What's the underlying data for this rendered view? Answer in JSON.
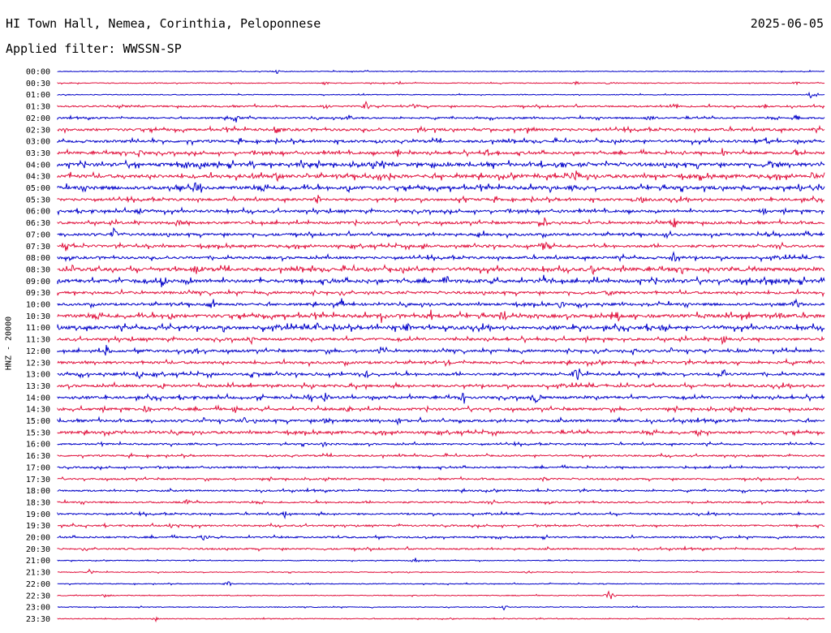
{
  "header": {
    "title": "HI Town Hall, Nemea, Corinthia, Peloponnese",
    "date": "2025-06-05",
    "filter": "Applied filter: WWSSN-SP"
  },
  "chart_data": {
    "type": "line",
    "ylabel": "HNZ - 20000",
    "xlabel": "",
    "rows": [
      "00:00",
      "00:30",
      "01:00",
      "01:30",
      "02:00",
      "02:30",
      "03:00",
      "03:30",
      "04:00",
      "04:30",
      "05:00",
      "05:30",
      "06:00",
      "06:30",
      "07:00",
      "07:30",
      "08:00",
      "08:30",
      "09:00",
      "09:30",
      "10:00",
      "10:30",
      "11:00",
      "11:30",
      "12:00",
      "12:30",
      "13:00",
      "13:30",
      "14:00",
      "14:30",
      "15:00",
      "15:30",
      "16:00",
      "16:30",
      "17:00",
      "17:30",
      "18:00",
      "18:30",
      "19:00",
      "19:30",
      "20:00",
      "20:30",
      "21:00",
      "21:30",
      "22:00",
      "22:30",
      "23:00",
      "23:30"
    ],
    "colors": [
      "#0000c8",
      "#e0103c"
    ],
    "noise_level": [
      1,
      1,
      1,
      2,
      2,
      3,
      3,
      3,
      4,
      4,
      4,
      3,
      3,
      3,
      3,
      3,
      3,
      4,
      4,
      3,
      3,
      4,
      4,
      3,
      3,
      3,
      3,
      3,
      3,
      3,
      3,
      3,
      2,
      2,
      2,
      2,
      2,
      2,
      2,
      2,
      2,
      2,
      1,
      1,
      1,
      1,
      1,
      1
    ],
    "events": [
      [
        [
          270,
          0.7
        ]
      ],
      [
        [
          330,
          0.6
        ],
        [
          420,
          0.8
        ],
        [
          640,
          0.7
        ],
        [
          680,
          0.6
        ],
        [
          910,
          0.6
        ]
      ],
      [
        [
          930,
          1.8
        ]
      ],
      [
        [
          330,
          1.2
        ],
        [
          380,
          1.5
        ],
        [
          440,
          1.2
        ],
        [
          760,
          2.0
        ],
        [
          870,
          1.0
        ]
      ],
      [
        [
          220,
          1.5
        ],
        [
          360,
          1.3
        ],
        [
          730,
          1.2
        ],
        [
          910,
          1.4
        ]
      ],
      [
        [
          270,
          1.4
        ],
        [
          450,
          1.0
        ],
        [
          580,
          1.0
        ]
      ],
      [
        [
          870,
          1.1
        ]
      ],
      [
        [
          100,
          1.6
        ],
        [
          420,
          1.3
        ],
        [
          530,
          1.5
        ],
        [
          820,
          1.7
        ],
        [
          910,
          1.3
        ]
      ],
      [
        [
          100,
          1.8
        ],
        [
          300,
          1.6
        ],
        [
          620,
          1.3
        ],
        [
          880,
          1.8
        ]
      ],
      [
        [
          240,
          1.3
        ],
        [
          270,
          1.8
        ],
        [
          410,
          1.2
        ],
        [
          640,
          1.8
        ],
        [
          930,
          1.6
        ]
      ],
      [
        [
          170,
          1.6
        ],
        [
          360,
          1.7
        ],
        [
          940,
          1.9
        ]
      ],
      [
        [
          320,
          1.8
        ],
        [
          500,
          1.1
        ],
        [
          720,
          1.1
        ]
      ],
      [
        [
          100,
          1.5
        ],
        [
          870,
          1.2
        ]
      ],
      [
        [
          150,
          1.4
        ],
        [
          600,
          1.8
        ],
        [
          760,
          1.5
        ]
      ],
      [
        [
          70,
          1.5
        ],
        [
          520,
          1.0
        ]
      ],
      [
        [
          10,
          1.8
        ],
        [
          110,
          1.4
        ],
        [
          450,
          1.6
        ],
        [
          600,
          1.8
        ]
      ],
      [
        [
          760,
          2.0
        ]
      ],
      [
        [
          170,
          1.2
        ],
        [
          660,
          1.8
        ]
      ],
      [
        [
          130,
          1.8
        ],
        [
          480,
          1.5
        ],
        [
          600,
          1.4
        ],
        [
          870,
          1.6
        ]
      ],
      [
        [
          680,
          1.6
        ]
      ],
      [
        [
          190,
          1.7
        ],
        [
          350,
          1.5
        ],
        [
          620,
          1.4
        ],
        [
          910,
          1.8
        ]
      ],
      [
        [
          140,
          1.5
        ],
        [
          400,
          1.6
        ],
        [
          460,
          1.9
        ],
        [
          550,
          2.0
        ],
        [
          690,
          1.8
        ],
        [
          890,
          1.9
        ]
      ],
      [
        [
          130,
          2.0
        ],
        [
          320,
          1.7
        ],
        [
          430,
          1.9
        ],
        [
          750,
          1.6
        ]
      ],
      [
        [
          240,
          1.4
        ],
        [
          820,
          1.5
        ]
      ],
      [
        [
          60,
          1.8
        ],
        [
          170,
          1.4
        ],
        [
          400,
          1.4
        ],
        [
          710,
          1.3
        ]
      ],
      [
        [
          480,
          1.3
        ]
      ],
      [
        [
          100,
          2.0
        ],
        [
          240,
          1.4
        ],
        [
          380,
          1.7
        ],
        [
          640,
          1.9
        ],
        [
          820,
          1.6
        ]
      ],
      [
        [
          130,
          1.2
        ]
      ],
      [
        [
          310,
          1.7
        ],
        [
          330,
          1.9
        ],
        [
          500,
          1.3
        ],
        [
          590,
          1.8
        ]
      ],
      [
        [
          110,
          1.9
        ],
        [
          220,
          1.3
        ],
        [
          360,
          1.4
        ]
      ],
      [
        [
          230,
          1.3
        ],
        [
          330,
          1.5
        ],
        [
          420,
          1.5
        ]
      ],
      [
        [
          80,
          1.1
        ],
        [
          790,
          1.2
        ]
      ],
      [
        [
          330,
          1.0
        ]
      ],
      [],
      [],
      [
        [
          600,
          1.0
        ]
      ],
      [],
      [
        [
          160,
          1.0
        ]
      ],
      [
        [
          280,
          1.0
        ]
      ],
      [
        [
          140,
          0.9
        ]
      ],
      [
        [
          180,
          1.2
        ]
      ],
      [],
      [
        [
          440,
          1.1
        ]
      ],
      [
        [
          40,
          1.0
        ],
        [
          580,
          1.0
        ]
      ],
      [
        [
          210,
          1.0
        ]
      ],
      [
        [
          60,
          1.0
        ],
        [
          680,
          2.0
        ]
      ],
      [
        [
          550,
          0.8
        ]
      ],
      [
        [
          120,
          0.8
        ]
      ]
    ]
  }
}
